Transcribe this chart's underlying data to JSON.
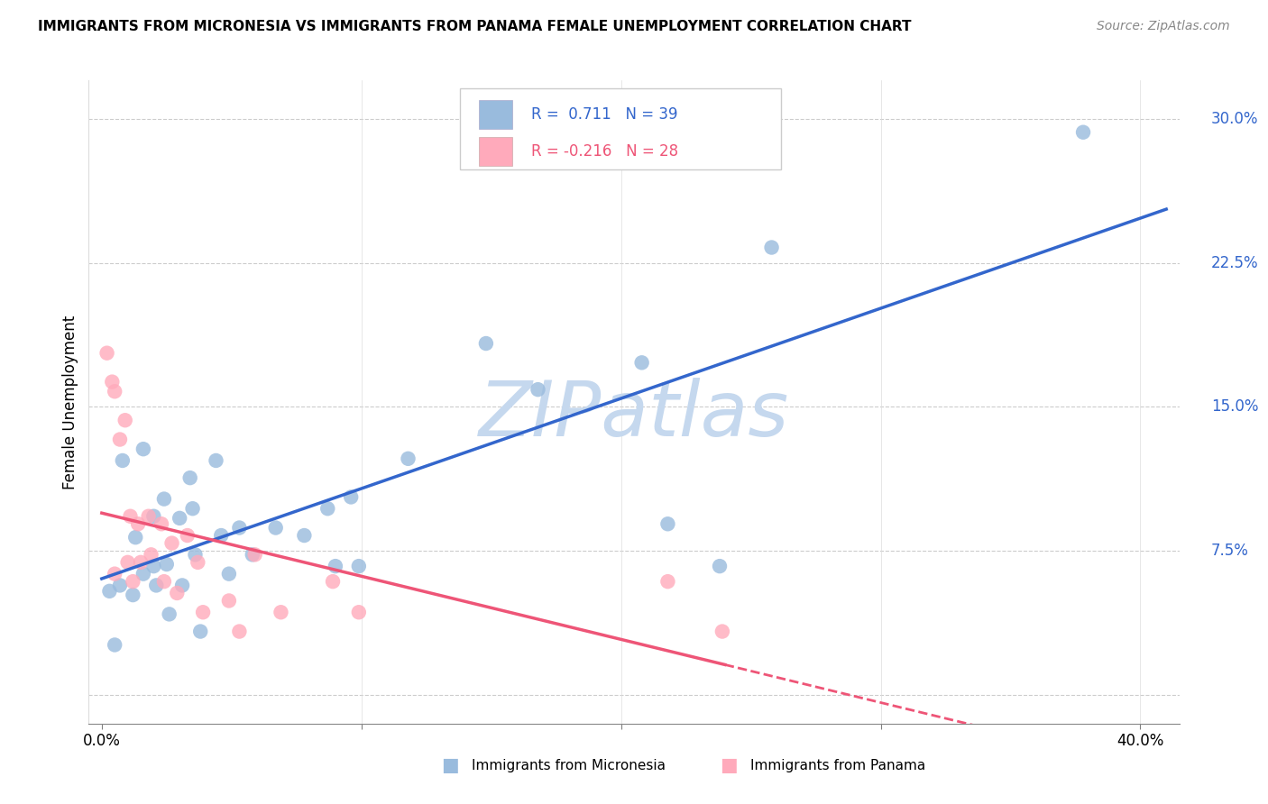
{
  "title": "IMMIGRANTS FROM MICRONESIA VS IMMIGRANTS FROM PANAMA FEMALE UNEMPLOYMENT CORRELATION CHART",
  "source": "Source: ZipAtlas.com",
  "ylabel": "Female Unemployment",
  "R1": 0.711,
  "N1": 39,
  "R2": -0.216,
  "N2": 28,
  "color_blue": "#99BBDD",
  "color_pink": "#FFAABB",
  "color_blue_line": "#3366CC",
  "color_pink_line": "#EE5577",
  "color_blue_text": "#3366CC",
  "color_pink_text": "#EE5577",
  "watermark_color": "#C5D8EE",
  "blue_x": [
    0.003,
    0.007,
    0.008,
    0.012,
    0.013,
    0.016,
    0.016,
    0.02,
    0.02,
    0.021,
    0.024,
    0.025,
    0.026,
    0.03,
    0.031,
    0.034,
    0.035,
    0.036,
    0.038,
    0.044,
    0.046,
    0.049,
    0.053,
    0.058,
    0.067,
    0.078,
    0.087,
    0.09,
    0.096,
    0.099,
    0.118,
    0.148,
    0.168,
    0.208,
    0.218,
    0.238,
    0.258,
    0.378,
    0.005
  ],
  "blue_y": [
    0.054,
    0.057,
    0.122,
    0.052,
    0.082,
    0.063,
    0.128,
    0.067,
    0.093,
    0.057,
    0.102,
    0.068,
    0.042,
    0.092,
    0.057,
    0.113,
    0.097,
    0.073,
    0.033,
    0.122,
    0.083,
    0.063,
    0.087,
    0.073,
    0.087,
    0.083,
    0.097,
    0.067,
    0.103,
    0.067,
    0.123,
    0.183,
    0.159,
    0.173,
    0.089,
    0.067,
    0.233,
    0.293,
    0.026
  ],
  "pink_x": [
    0.002,
    0.004,
    0.005,
    0.007,
    0.009,
    0.01,
    0.011,
    0.012,
    0.014,
    0.015,
    0.018,
    0.019,
    0.023,
    0.024,
    0.027,
    0.029,
    0.033,
    0.037,
    0.039,
    0.049,
    0.053,
    0.059,
    0.069,
    0.089,
    0.099,
    0.218,
    0.239,
    0.005
  ],
  "pink_y": [
    0.178,
    0.163,
    0.158,
    0.133,
    0.143,
    0.069,
    0.093,
    0.059,
    0.089,
    0.069,
    0.093,
    0.073,
    0.089,
    0.059,
    0.079,
    0.053,
    0.083,
    0.069,
    0.043,
    0.049,
    0.033,
    0.073,
    0.043,
    0.059,
    0.043,
    0.059,
    0.033,
    0.063
  ],
  "legend_label1": "Immigrants from Micronesia",
  "legend_label2": "Immigrants from Panama",
  "xlim": [
    -0.005,
    0.415
  ],
  "ylim": [
    -0.015,
    0.32
  ],
  "yticks": [
    0.0,
    0.075,
    0.15,
    0.225,
    0.3
  ],
  "ytick_labels": [
    "",
    "7.5%",
    "15.0%",
    "22.5%",
    "30.0%"
  ],
  "xticks": [
    0.0,
    0.1,
    0.2,
    0.3,
    0.4
  ],
  "xtick_labels": [
    "0.0%",
    "",
    "",
    "",
    "40.0%"
  ]
}
